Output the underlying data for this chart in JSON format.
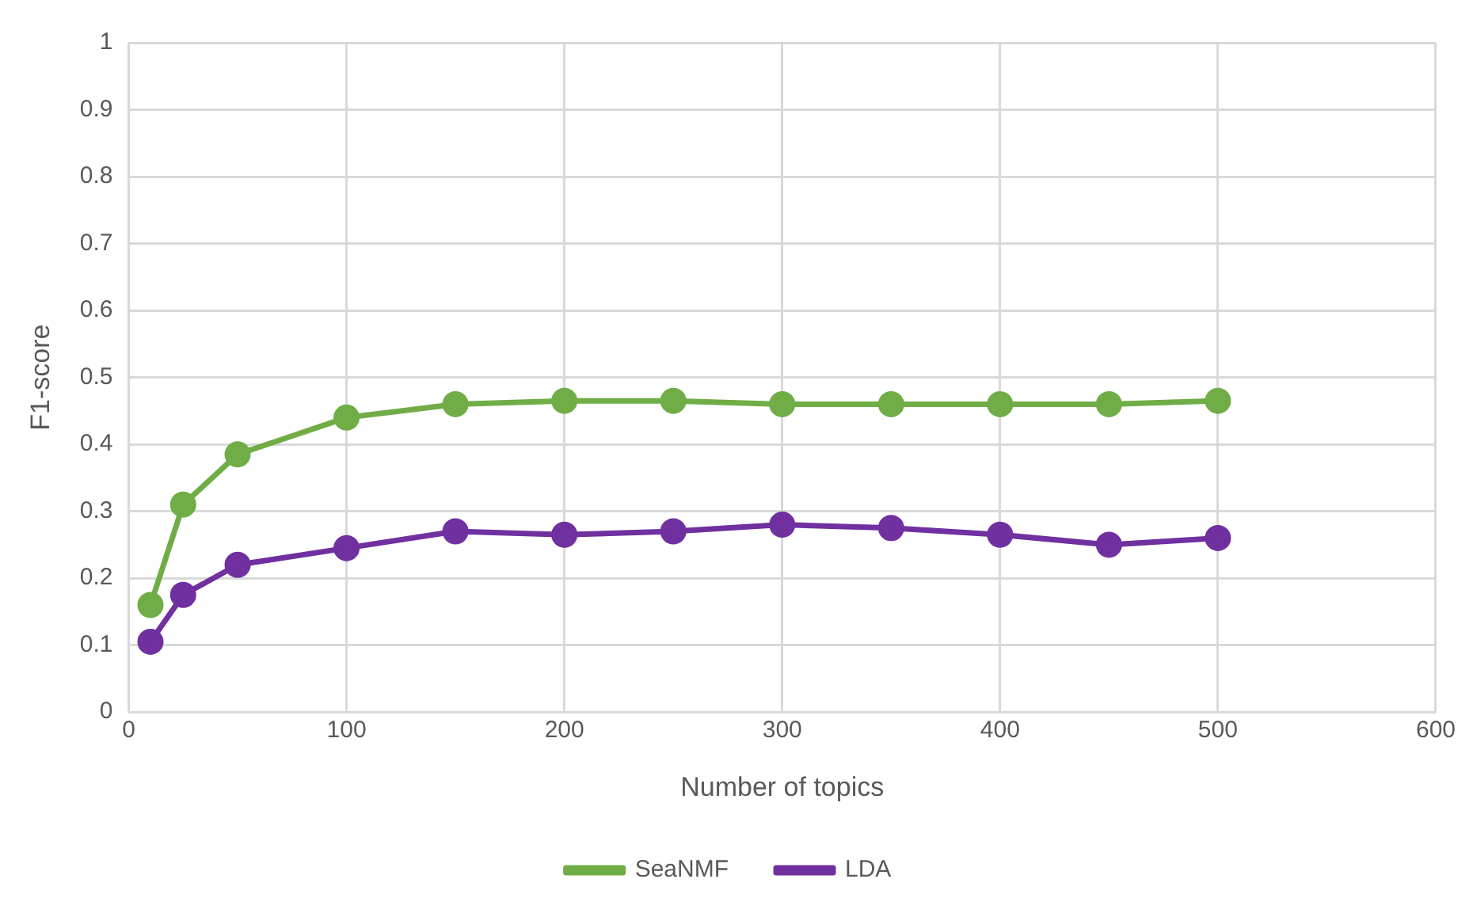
{
  "chart_data": {
    "type": "line",
    "xlabel": "Number of topics",
    "ylabel": "F1-score",
    "x": [
      10,
      25,
      50,
      100,
      150,
      200,
      250,
      300,
      350,
      400,
      450,
      500
    ],
    "series": [
      {
        "name": "SeaNMF",
        "color": "#70ad47",
        "values": [
          0.16,
          0.31,
          0.385,
          0.44,
          0.46,
          0.465,
          0.465,
          0.46,
          0.46,
          0.46,
          0.46,
          0.465
        ]
      },
      {
        "name": "LDA",
        "color": "#7030a0",
        "values": [
          0.105,
          0.175,
          0.22,
          0.245,
          0.27,
          0.265,
          0.27,
          0.28,
          0.275,
          0.265,
          0.25,
          0.26
        ]
      }
    ],
    "xlim": [
      0,
      600
    ],
    "xticks": [
      0,
      100,
      200,
      300,
      400,
      500,
      600
    ],
    "ylim": [
      0,
      1
    ],
    "yticks": [
      0,
      0.1,
      0.2,
      0.3,
      0.4,
      0.5,
      0.6,
      0.7,
      0.8,
      0.9,
      1
    ],
    "grid": true,
    "legend": "bottom",
    "marker": "circle",
    "line_style": "solid"
  }
}
